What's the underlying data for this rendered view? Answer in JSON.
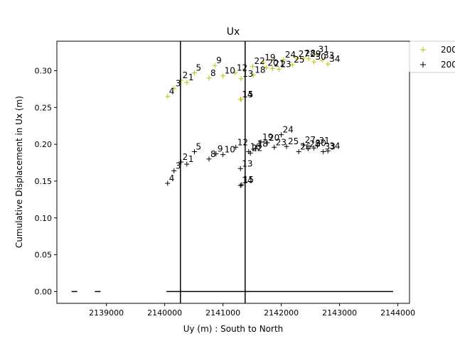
{
  "chart_data": {
    "type": "scatter",
    "title": "Ux",
    "xlabel": "Uy (m) : South to North",
    "ylabel": "Cumulative Displacement in Ux (m)",
    "xlim": [
      2138150,
      2144200
    ],
    "ylim": [
      -0.016,
      0.34
    ],
    "x_ticks": [
      2139000,
      2140000,
      2141000,
      2142000,
      2143000,
      2144000
    ],
    "y_ticks": [
      0.0,
      0.05,
      0.1,
      0.15,
      0.2,
      0.25,
      0.3
    ],
    "grid": false,
    "legend_placement": "upper-right-outside",
    "vertical_lines": [
      2140270,
      2141380
    ],
    "baseline": {
      "y": 0.0,
      "x_start": 2140030,
      "x_end": 2143920
    },
    "dashes": [
      2138450,
      2138850
    ],
    "series": [
      {
        "name": "200",
        "color": "#bfbf00",
        "marker": "+",
        "points": [
          {
            "label": "1",
            "x": 2140380,
            "y": 0.284
          },
          {
            "label": "2",
            "x": 2140280,
            "y": 0.287
          },
          {
            "label": "3",
            "x": 2140160,
            "y": 0.276
          },
          {
            "label": "4",
            "x": 2140050,
            "y": 0.265
          },
          {
            "label": "5",
            "x": 2140510,
            "y": 0.297
          },
          {
            "label": "8",
            "x": 2140760,
            "y": 0.29
          },
          {
            "label": "9",
            "x": 2140860,
            "y": 0.307
          },
          {
            "label": "10",
            "x": 2141000,
            "y": 0.293
          },
          {
            "label": "12",
            "x": 2141210,
            "y": 0.297
          },
          {
            "label": "13",
            "x": 2141310,
            "y": 0.289
          },
          {
            "label": "14",
            "x": 2141300,
            "y": 0.261
          },
          {
            "label": "15",
            "x": 2141310,
            "y": 0.261
          },
          {
            "label": "18",
            "x": 2141520,
            "y": 0.294
          },
          {
            "label": "19",
            "x": 2141690,
            "y": 0.311
          },
          {
            "label": "20",
            "x": 2141740,
            "y": 0.304
          },
          {
            "label": "21",
            "x": 2141850,
            "y": 0.303
          },
          {
            "label": "22",
            "x": 2141510,
            "y": 0.306
          },
          {
            "label": "23",
            "x": 2141960,
            "y": 0.302
          },
          {
            "label": "24",
            "x": 2142040,
            "y": 0.315
          },
          {
            "label": "25",
            "x": 2142190,
            "y": 0.308
          },
          {
            "label": "27",
            "x": 2142270,
            "y": 0.316
          },
          {
            "label": "28",
            "x": 2142380,
            "y": 0.317
          },
          {
            "label": "29",
            "x": 2142470,
            "y": 0.316
          },
          {
            "label": "30",
            "x": 2142560,
            "y": 0.312
          },
          {
            "label": "31",
            "x": 2142610,
            "y": 0.322
          },
          {
            "label": "33",
            "x": 2142700,
            "y": 0.314
          },
          {
            "label": "34",
            "x": 2142800,
            "y": 0.309
          }
        ]
      },
      {
        "name": "200",
        "color": "#000000",
        "marker": "+",
        "points": [
          {
            "label": "1",
            "x": 2140380,
            "y": 0.173
          },
          {
            "label": "2",
            "x": 2140280,
            "y": 0.176
          },
          {
            "label": "3",
            "x": 2140160,
            "y": 0.164
          },
          {
            "label": "4",
            "x": 2140050,
            "y": 0.147
          },
          {
            "label": "5",
            "x": 2140510,
            "y": 0.19
          },
          {
            "label": "8",
            "x": 2140760,
            "y": 0.18
          },
          {
            "label": "9",
            "x": 2140880,
            "y": 0.187
          },
          {
            "label": "10",
            "x": 2141000,
            "y": 0.186
          },
          {
            "label": "12",
            "x": 2141220,
            "y": 0.196
          },
          {
            "label": "13",
            "x": 2141300,
            "y": 0.167
          },
          {
            "label": "14",
            "x": 2141300,
            "y": 0.144
          },
          {
            "label": "15",
            "x": 2141320,
            "y": 0.145
          },
          {
            "label": "16",
            "x": 2141440,
            "y": 0.19
          },
          {
            "label": "18",
            "x": 2141560,
            "y": 0.194
          },
          {
            "label": "19",
            "x": 2141650,
            "y": 0.203
          },
          {
            "label": "20",
            "x": 2141760,
            "y": 0.202
          },
          {
            "label": "22",
            "x": 2141470,
            "y": 0.188
          },
          {
            "label": "23",
            "x": 2141880,
            "y": 0.196
          },
          {
            "label": "24",
            "x": 2142000,
            "y": 0.213
          },
          {
            "label": "25",
            "x": 2142090,
            "y": 0.197
          },
          {
            "label": "26",
            "x": 2142300,
            "y": 0.19
          },
          {
            "label": "27",
            "x": 2142380,
            "y": 0.199
          },
          {
            "label": "28",
            "x": 2142460,
            "y": 0.194
          },
          {
            "label": "30",
            "x": 2142560,
            "y": 0.195
          },
          {
            "label": "31",
            "x": 2142620,
            "y": 0.198
          },
          {
            "label": "33",
            "x": 2142720,
            "y": 0.19
          },
          {
            "label": "34",
            "x": 2142800,
            "y": 0.191
          }
        ]
      }
    ]
  }
}
